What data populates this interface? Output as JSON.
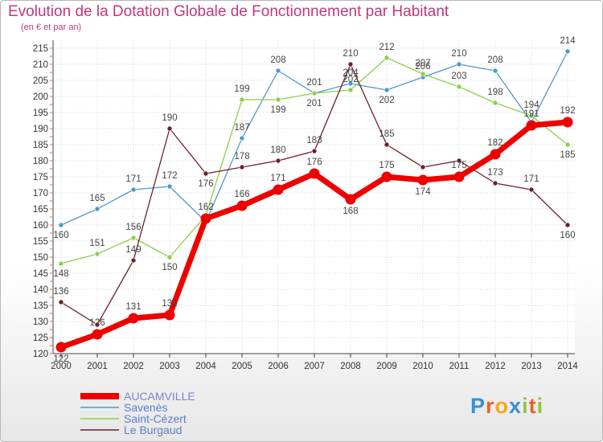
{
  "title": "Evolution de la Dotation Globale de Fonctionnement par Habitant",
  "subtitle": "(en € et par an)",
  "brand": {
    "letters": [
      "P",
      "r",
      "o",
      "x",
      "i",
      "t",
      "i"
    ],
    "colors": [
      "#3a8fd8",
      "#e8622a",
      "#f0a81c",
      "#3a8fd8",
      "#8cc63f",
      "#e8622a",
      "#8cc63f"
    ]
  },
  "chart_data": {
    "type": "line",
    "title": "Evolution de la Dotation Globale de Fonctionnement par Habitant",
    "xlabel": "",
    "ylabel": "",
    "x": [
      "2000",
      "2001",
      "2002",
      "2003",
      "2004",
      "2005",
      "2006",
      "2007",
      "2008",
      "2009",
      "2010",
      "2011",
      "2012",
      "2013",
      "2014"
    ],
    "ylim": [
      120,
      215
    ],
    "yticks": [
      120,
      125,
      130,
      135,
      140,
      145,
      150,
      155,
      160,
      165,
      170,
      175,
      180,
      185,
      190,
      195,
      200,
      205,
      210,
      215
    ],
    "grid": true,
    "legend_position": "bottom-left",
    "series": [
      {
        "name": "AUCAMVILLE",
        "color": "#ee0000",
        "values": [
          122,
          126,
          131,
          132,
          162,
          166,
          171,
          176,
          168,
          175,
          174,
          175,
          182,
          191,
          192
        ],
        "labels": [
          "122",
          "126",
          "131",
          "132",
          "162",
          "166",
          "171",
          "176",
          "168",
          "175",
          "174",
          "175",
          "182",
          "191",
          "192"
        ]
      },
      {
        "name": "Savenès",
        "color": "#4f97d0",
        "values": [
          160,
          165,
          171,
          172,
          161,
          187,
          208,
          201,
          204,
          202,
          206,
          210,
          208,
          192,
          214
        ],
        "labels": [
          "160",
          "165",
          "171",
          "172",
          "",
          "187",
          "208",
          "201",
          "204",
          "202",
          "206",
          "210",
          "208",
          "",
          "214"
        ]
      },
      {
        "name": "Saint-Cézert",
        "color": "#8ccf4a",
        "values": [
          148,
          151,
          156,
          150,
          163,
          199,
          199,
          201,
          202,
          212,
          207,
          203,
          198,
          194,
          185
        ],
        "labels": [
          "148",
          "151",
          "156",
          "150",
          "",
          "199",
          "199",
          "201",
          "202",
          "212",
          "207",
          "203",
          "198",
          "194",
          "185"
        ]
      },
      {
        "name": "Le Burgaud",
        "color": "#6e1f28",
        "values": [
          136,
          129,
          149,
          190,
          176,
          178,
          180,
          183,
          210,
          185,
          178,
          180,
          173,
          171,
          160
        ],
        "labels": [
          "136",
          "",
          "149",
          "190",
          "176",
          "178",
          "180",
          "183",
          "210",
          "185",
          "",
          "",
          "173",
          "171",
          "160"
        ]
      }
    ]
  }
}
